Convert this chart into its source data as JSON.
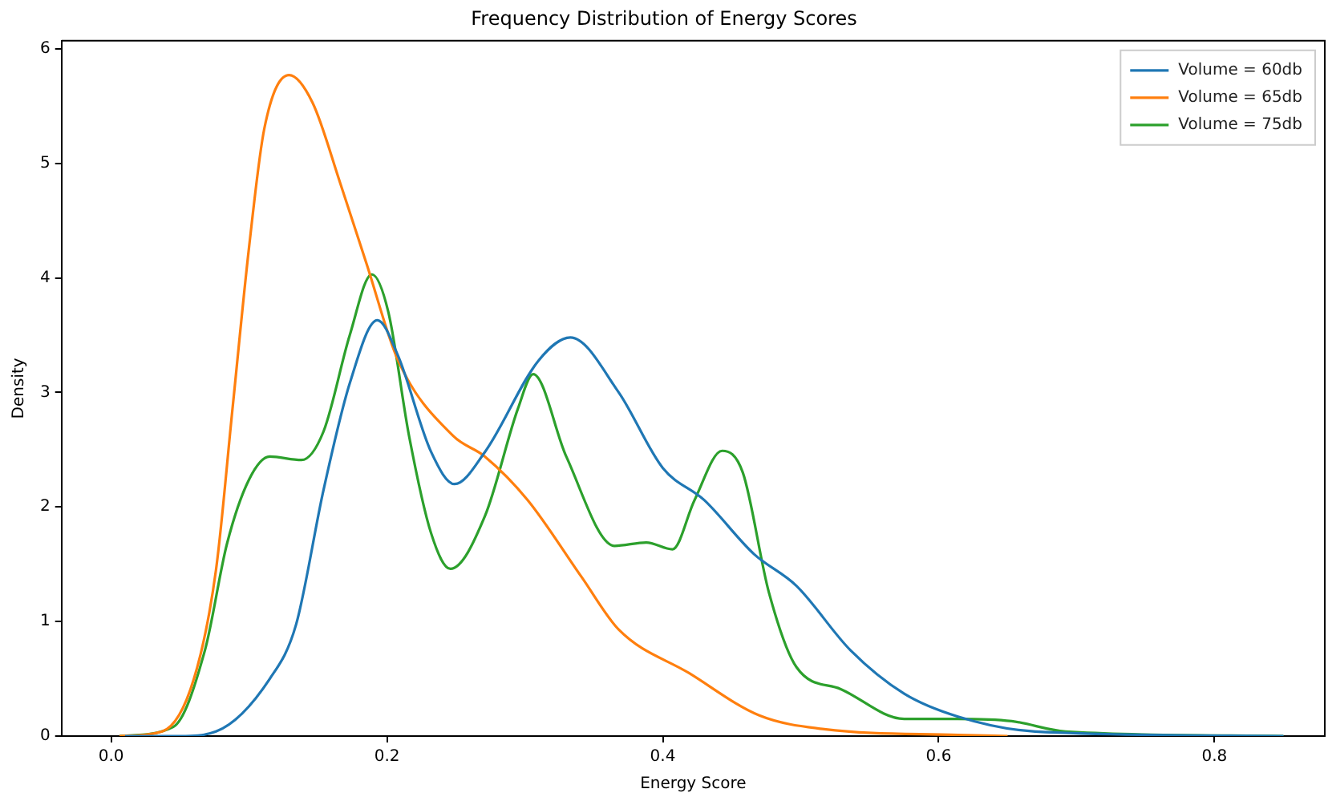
{
  "chart_data": {
    "type": "line",
    "title": "Frequency Distribution of Energy Scores",
    "xlabel": "Energy Score",
    "ylabel": "Density",
    "xlim": [
      -0.036,
      0.88
    ],
    "xticks": [
      {
        "value": 0,
        "label": "0.0"
      },
      0.2,
      0.4,
      0.6,
      0.8
    ],
    "ylim": [
      0,
      6.07
    ],
    "yticks": [
      0,
      1,
      2,
      3,
      4,
      5,
      6
    ],
    "grid": false,
    "legend": "top right",
    "marker": "none",
    "line_style": "solid",
    "series": [
      {
        "name": "Volume = 60db",
        "color": "#1f77b4",
        "x": [
          0.01,
          0.05,
          0.076,
          0.115,
          0.134,
          0.154,
          0.173,
          0.193,
          0.208,
          0.232,
          0.249,
          0.271,
          0.31,
          0.333,
          0.368,
          0.4,
          0.43,
          0.466,
          0.497,
          0.536,
          0.575,
          0.614,
          0.67,
          0.85
        ],
        "values": [
          0,
          0,
          0.04,
          0.5,
          0.97,
          2.15,
          3.08,
          3.63,
          3.32,
          2.48,
          2.2,
          2.48,
          3.28,
          3.48,
          3.0,
          2.34,
          2.06,
          1.59,
          1.31,
          0.75,
          0.37,
          0.17,
          0.04,
          0
        ]
      },
      {
        "name": "Volume = 65db",
        "color": "#ff7f0e",
        "x": [
          0.006,
          0.037,
          0.06,
          0.076,
          0.088,
          0.1,
          0.111,
          0.129,
          0.146,
          0.166,
          0.185,
          0.208,
          0.248,
          0.271,
          0.302,
          0.341,
          0.368,
          0.419,
          0.47,
          0.517,
          0.614,
          0.65
        ],
        "values": [
          0,
          0.04,
          0.5,
          1.45,
          2.86,
          4.27,
          5.3,
          5.77,
          5.53,
          4.83,
          4.13,
          3.28,
          2.62,
          2.44,
          2.06,
          1.39,
          0.93,
          0.55,
          0.18,
          0.06,
          0.01,
          0
        ]
      },
      {
        "name": "Volume = 75db",
        "color": "#2ca02c",
        "x": [
          0.006,
          0.045,
          0.068,
          0.084,
          0.1,
          0.115,
          0.138,
          0.154,
          0.173,
          0.189,
          0.201,
          0.216,
          0.232,
          0.246,
          0.271,
          0.295,
          0.306,
          0.33,
          0.365,
          0.388,
          0.407,
          0.423,
          0.443,
          0.458,
          0.477,
          0.497,
          0.529,
          0.575,
          0.614,
          0.653,
          0.692,
          0.85
        ],
        "values": [
          0,
          0.08,
          0.75,
          1.68,
          2.24,
          2.44,
          2.41,
          2.66,
          3.5,
          4.03,
          3.7,
          2.62,
          1.77,
          1.46,
          1.92,
          2.86,
          3.16,
          2.44,
          1.66,
          1.69,
          1.63,
          2.06,
          2.49,
          2.3,
          1.25,
          0.6,
          0.41,
          0.15,
          0.15,
          0.13,
          0.04,
          0
        ]
      }
    ]
  }
}
